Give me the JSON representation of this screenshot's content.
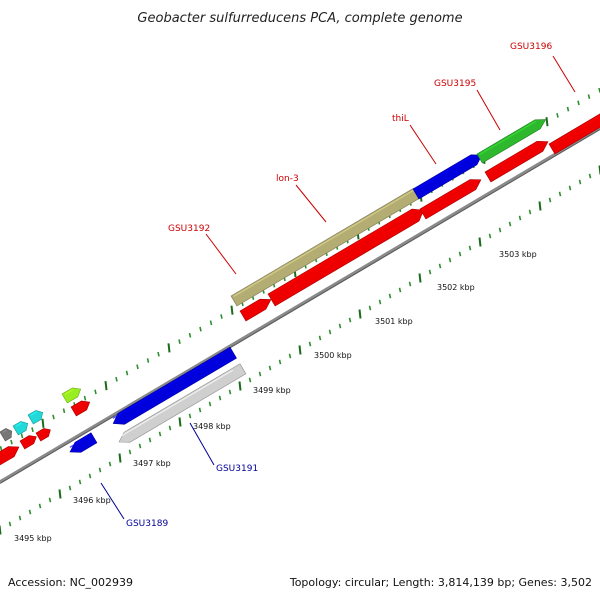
{
  "title": "Geobacter sulfurreducens PCA, complete genome",
  "footer": {
    "accession": "Accession: NC_002939",
    "summary": "Topology: circular; Length: 3,814,139 bp; Genes: 3,502"
  },
  "scale_labels": [
    "3495 kbp",
    "3496 kbp",
    "3497 kbp",
    "3498 kbp",
    "3499 kbp",
    "3500 kbp",
    "3501 kbp",
    "3502 kbp",
    "3503 kbp"
  ],
  "colors": {
    "forward_label": "#cc0000",
    "reverse_label": "#000099",
    "tick_major": "#1a6b1a",
    "tick_minor": "#2f8f2f",
    "backbone": "#8a8a8a",
    "red": "#ee0000",
    "blue": "#0000dd",
    "olive": "#b3ad74",
    "green": "#2db82d",
    "gray": "#cfcfcf",
    "cyan": "#22d8d8",
    "lime": "#99ee22",
    "dark_gray": "#777777"
  },
  "gene_labels": {
    "forward": [
      "GSU3192",
      "lon-3",
      "thiL",
      "GSU3195",
      "GSU3196"
    ],
    "reverse": [
      "GSU3189",
      "GSU3191"
    ]
  }
}
